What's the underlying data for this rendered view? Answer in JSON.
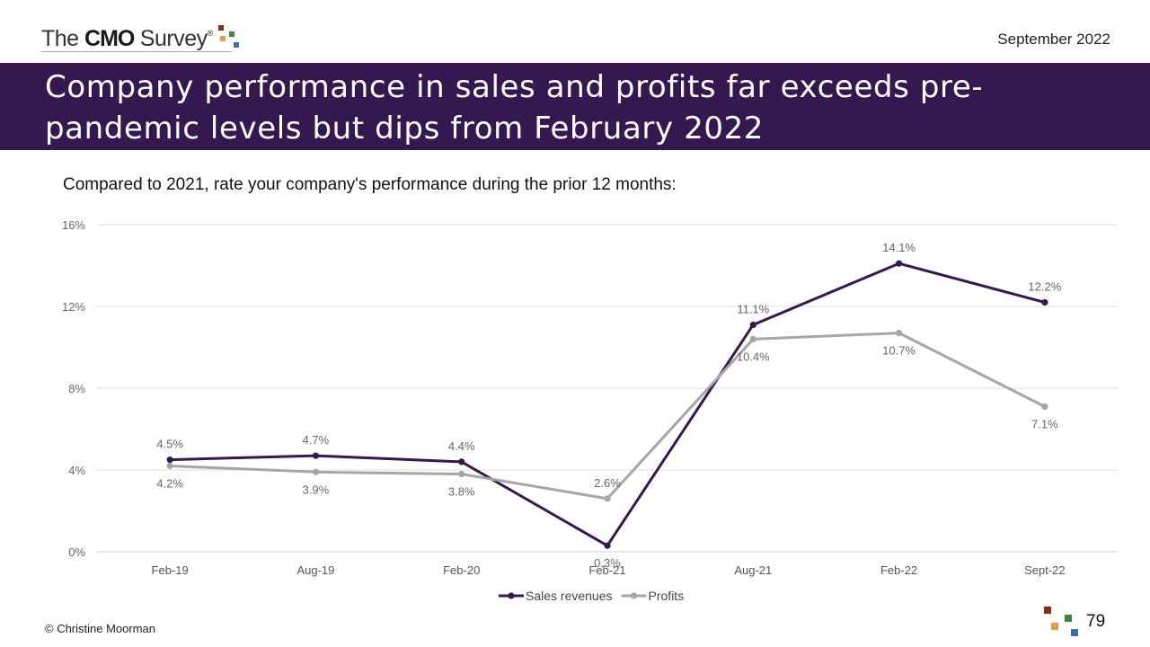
{
  "header": {
    "logo": {
      "prefix": "The ",
      "bold": "CMO",
      "suffix": " Survey",
      "reg": "®"
    },
    "date": "September 2022"
  },
  "title": "Company performance in sales and profits far exceeds pre-pandemic levels but dips from February 2022",
  "subtitle": "Compared to 2021, rate your company's performance during the prior 12 months:",
  "footer": {
    "copyright": "© Christine Moorman",
    "page": "79"
  },
  "colors": {
    "banner": "#35184f",
    "sales": "#35184f",
    "profits": "#a6a6a6"
  },
  "chart_data": {
    "type": "line",
    "categories": [
      "Feb-19",
      "Aug-19",
      "Feb-20",
      "Feb-21",
      "Aug-21",
      "Feb-22",
      "Sept-22"
    ],
    "series": [
      {
        "name": "Sales revenues",
        "values": [
          4.5,
          4.7,
          4.4,
          0.3,
          11.1,
          14.1,
          12.2
        ],
        "labels": [
          "4.5%",
          "4.7%",
          "4.4%",
          "0.3%",
          "11.1%",
          "14.1%",
          "12.2%"
        ],
        "color": "#35184f"
      },
      {
        "name": "Profits",
        "values": [
          4.2,
          3.9,
          3.8,
          2.6,
          10.4,
          10.7,
          7.1
        ],
        "labels": [
          "4.2%",
          "3.9%",
          "3.8%",
          "2.6%",
          "10.4%",
          "10.7%",
          "7.1%"
        ],
        "color": "#a6a6a6"
      }
    ],
    "yticks": [
      "0%",
      "4%",
      "8%",
      "12%",
      "16%"
    ],
    "ylim": [
      0,
      16
    ],
    "grid": true,
    "legend": "bottom-center"
  }
}
